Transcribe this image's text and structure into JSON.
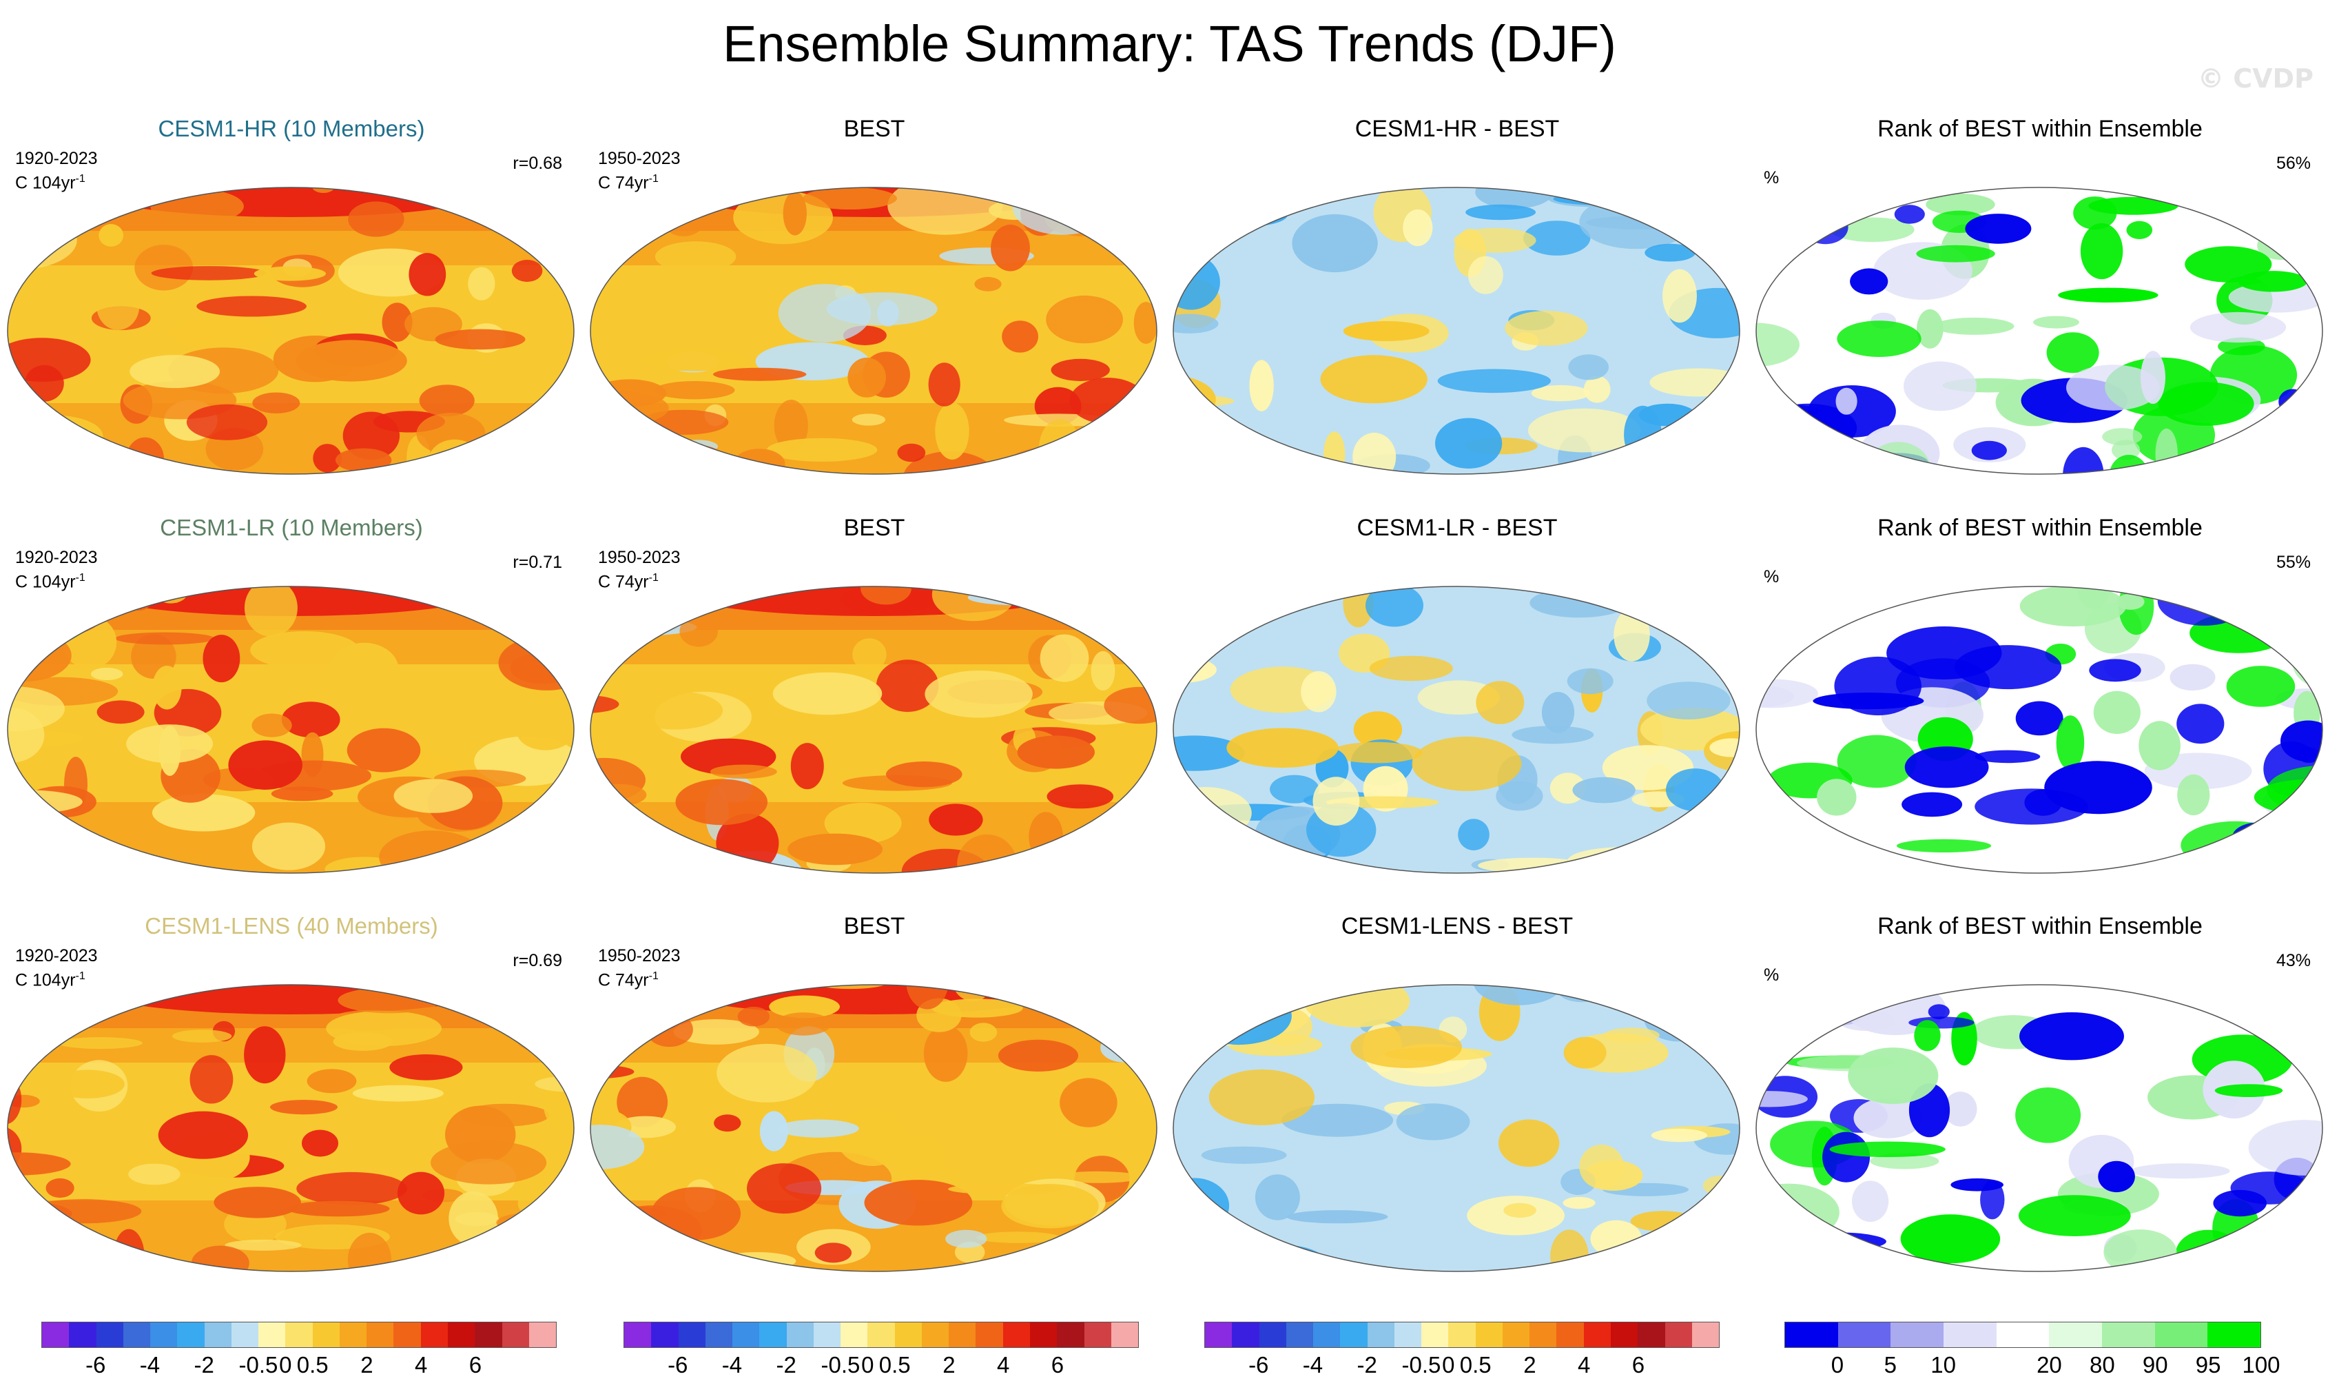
{
  "title": "Ensemble Summary: TAS Trends (DJF)",
  "watermark": "© CVDP",
  "rows": [
    {
      "ensemble": {
        "title": "CESM1-HR (10 Members)",
        "title_color": "#1f6f8b",
        "period": "1920-2023",
        "units": "C 104yr",
        "exp": "-1",
        "corr": "r=0.68"
      },
      "obs": {
        "title": "BEST",
        "period": "1950-2023",
        "units": "C 74yr",
        "exp": "-1"
      },
      "diff": {
        "title": "CESM1-HR - BEST"
      },
      "rank": {
        "title": "Rank of BEST within Ensemble",
        "unit": "%",
        "pct": "56%"
      }
    },
    {
      "ensemble": {
        "title": "CESM1-LR (10 Members)",
        "title_color": "#5b8062",
        "period": "1920-2023",
        "units": "C 104yr",
        "exp": "-1",
        "corr": "r=0.71"
      },
      "obs": {
        "title": "BEST",
        "period": "1950-2023",
        "units": "C 74yr",
        "exp": "-1"
      },
      "diff": {
        "title": "CESM1-LR - BEST"
      },
      "rank": {
        "title": "Rank of BEST within Ensemble",
        "unit": "%",
        "pct": "55%"
      }
    },
    {
      "ensemble": {
        "title": "CESM1-LENS (40 Members)",
        "title_color": "#d2c27a",
        "period": "1920-2023",
        "units": "C 104yr",
        "exp": "-1",
        "corr": "r=0.69"
      },
      "obs": {
        "title": "BEST",
        "period": "1950-2023",
        "units": "C 74yr",
        "exp": "-1"
      },
      "diff": {
        "title": "CESM1-LENS - BEST"
      },
      "rank": {
        "title": "Rank of BEST within Ensemble",
        "unit": "%",
        "pct": "43%"
      }
    }
  ],
  "colorbars": {
    "trend": {
      "colors": [
        "#8a2be2",
        "#3b1fe0",
        "#2a3cd6",
        "#3a6bd8",
        "#3b8fe6",
        "#39a9f0",
        "#8cc4ea",
        "#bfe0f2",
        "#fff6b0",
        "#fbe26a",
        "#f8c830",
        "#f6a820",
        "#f48a1a",
        "#f06418",
        "#e82612",
        "#c80f0c",
        "#a8141a",
        "#d04044",
        "#f5a9a9"
      ],
      "labels": [
        "-6",
        "-4",
        "-2",
        "-0.5",
        "0",
        "0.5",
        "2",
        "4",
        "6"
      ]
    },
    "rank": {
      "colors": [
        "#0000ee",
        "#6666ee",
        "#aaaaee",
        "#e0e0f8",
        "#ffffff",
        "#e0fbe0",
        "#aaf0aa",
        "#77ee77",
        "#00ee00"
      ],
      "labels": [
        "0",
        "5",
        "10",
        "20",
        "80",
        "90",
        "95",
        "100"
      ]
    }
  },
  "map_palettes": {
    "ensemble": [
      "#f6a820",
      "#f8c830",
      "#f48a1a",
      "#f06418",
      "#e82612",
      "#fbe26a"
    ],
    "obs": [
      "#f6a820",
      "#f8c830",
      "#f48a1a",
      "#f06418",
      "#e82612",
      "#fbe26a",
      "#bfe0f2"
    ],
    "diff": [
      "#bfe0f2",
      "#8cc4ea",
      "#fff6b0",
      "#fbe26a",
      "#39a9f0",
      "#f8c830"
    ],
    "rank": [
      "#ffffff",
      "#00ee00",
      "#0000ee",
      "#e0e0f8",
      "#aaf0aa"
    ]
  }
}
